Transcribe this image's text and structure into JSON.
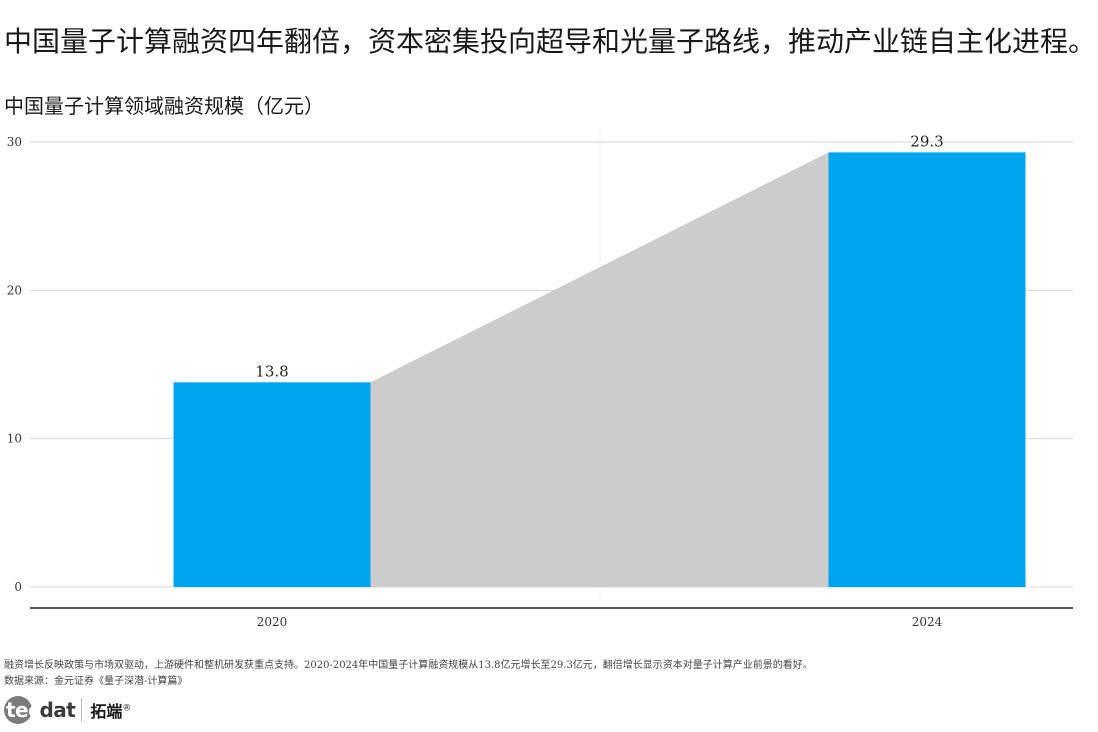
{
  "headline": "中国量子计算融资四年翻倍，资本密集投向超导和光量子路线，推动产业链自主化进程。",
  "chart_data": {
    "type": "bar",
    "title": "中国量子计算领域融资规模（亿元）",
    "xlabel": "",
    "ylabel": "",
    "categories": [
      "2020",
      "2024"
    ],
    "values": [
      13.8,
      29.3
    ],
    "value_labels": [
      "13.8",
      "29.3"
    ],
    "yticks": [
      0,
      10,
      20,
      30
    ],
    "ylim": [
      0,
      30
    ],
    "grid": true,
    "legend": "none",
    "bar_color": "#00a5ef",
    "connector_color": "#cccccc"
  },
  "footer": {
    "note": "融资增长反映政策与市场双驱动，上游硬件和整机研发获重点支持。2020-2024年中国量子计算融资规模从13.8亿元增长至29.3亿元，翻倍增长显示资本对量子计算产业前景的看好。",
    "source": "数据来源：金元证券《量子深潜-计算篇》"
  },
  "logo": {
    "latin_part1": "tec",
    "latin_part2": "dat",
    "chinese": "拓端",
    "registered": "®"
  }
}
